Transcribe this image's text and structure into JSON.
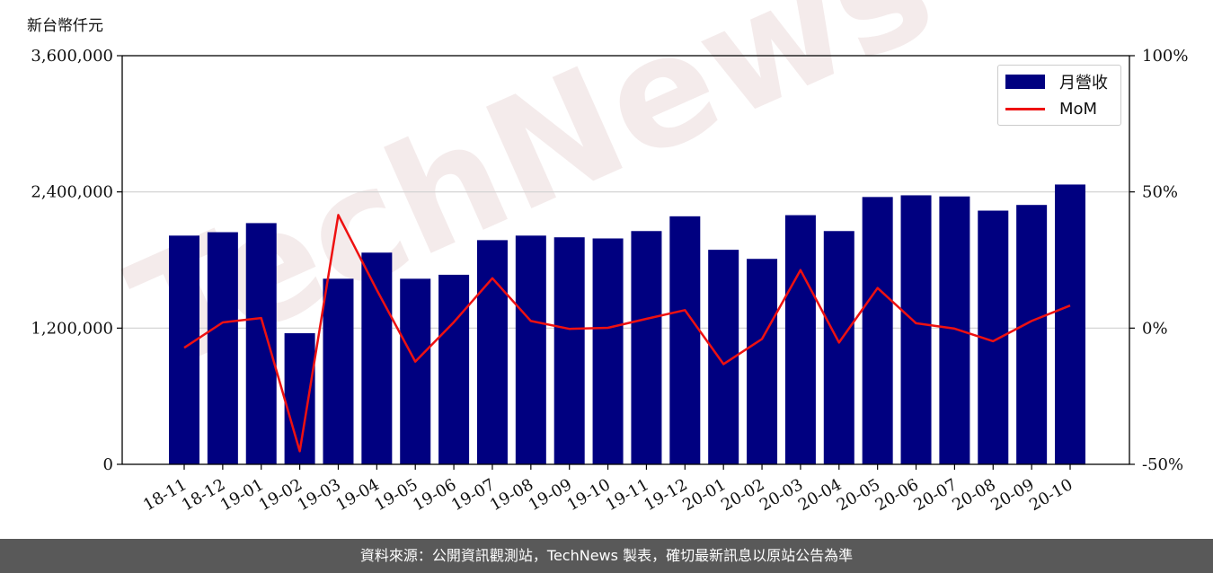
{
  "unit_label": "新台幣仟元",
  "footer_text": "資料來源：公開資訊觀測站，TechNews 製表，確切最新訊息以原站公告為準",
  "watermark_text": "TechNews",
  "legend": {
    "bar_label": "月營收",
    "line_label": "MoM"
  },
  "colors": {
    "bar": "#000080",
    "line": "#ee1111",
    "footer_bg": "#595959"
  },
  "chart_data": {
    "type": "bar",
    "categories": [
      "18-11",
      "18-12",
      "19-01",
      "19-02",
      "19-03",
      "19-04",
      "19-05",
      "19-06",
      "19-07",
      "19-08",
      "19-09",
      "19-10",
      "19-11",
      "19-12",
      "20-01",
      "20-02",
      "20-03",
      "20-04",
      "20-05",
      "20-06",
      "20-07",
      "20-08",
      "20-09",
      "20-10"
    ],
    "series": [
      {
        "name": "月營收",
        "type": "bar",
        "axis": "left",
        "values": [
          2015000,
          2045000,
          2125000,
          1155000,
          1635000,
          1865000,
          1635000,
          1670000,
          1975000,
          2015000,
          2000000,
          1990000,
          2055000,
          2185000,
          1890000,
          1810000,
          2195000,
          2055000,
          2355000,
          2370000,
          2360000,
          2235000,
          2285000,
          2465000
        ]
      },
      {
        "name": "MoM",
        "type": "line",
        "axis": "right",
        "values": [
          -7.2,
          2.1,
          3.7,
          -45.2,
          41.5,
          14.0,
          -12.3,
          2.2,
          18.3,
          2.6,
          -0.3,
          0.1,
          3.4,
          6.6,
          -13.2,
          -4.0,
          21.3,
          -5.3,
          14.7,
          1.8,
          -0.2,
          -4.8,
          2.6,
          8.3
        ]
      }
    ],
    "ylim_left": [
      0,
      3600000
    ],
    "yticks_left": [
      "0",
      "1,200,000",
      "2,400,000",
      "3,600,000"
    ],
    "ylim_right": [
      -50,
      100
    ],
    "yticks_right": [
      "-50%",
      "0%",
      "50%",
      "100%"
    ],
    "grid": "horizontal",
    "legend_position": "top-right"
  }
}
